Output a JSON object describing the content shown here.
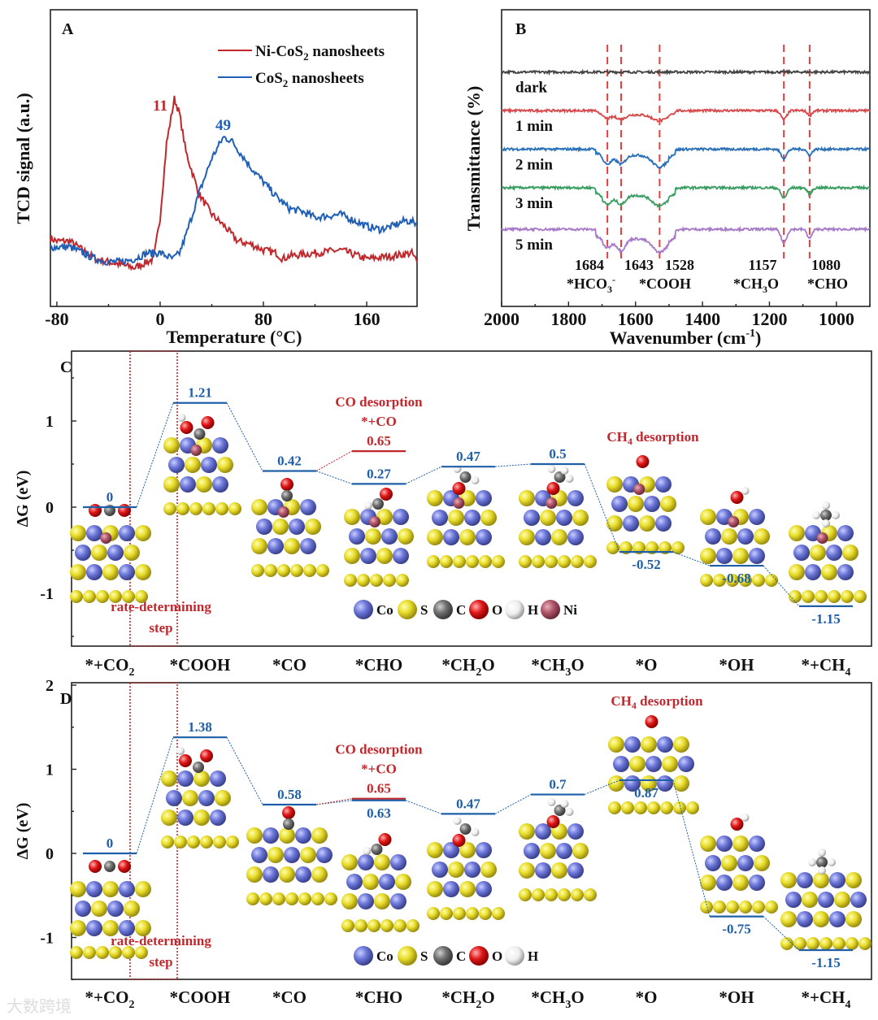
{
  "watermark": "大数跨境",
  "chart_data": [
    {
      "panel": "A",
      "type": "line",
      "xlabel": "Temperature (°C)",
      "ylabel": "TCD signal (a.u.)",
      "xlim": [
        -85,
        199
      ],
      "ylim": [
        0,
        1
      ],
      "xticks": [
        -80,
        0,
        80,
        160
      ],
      "legend_position": "top-right",
      "series": [
        {
          "name": "Ni-CoS2 nanosheets",
          "name_main": "Ni-CoS",
          "name_sub": "2",
          "name_tail": " nanosheets",
          "color": "#c0282d",
          "peak_label": "11",
          "x": [
            -85,
            -80,
            -70,
            -60,
            -50,
            -40,
            -30,
            -20,
            -10,
            -5,
            0,
            5,
            11,
            15,
            20,
            25,
            30,
            40,
            50,
            60,
            70,
            80,
            90,
            95,
            100,
            120,
            140,
            160,
            180,
            195,
            199
          ],
          "y": [
            0.23,
            0.22,
            0.22,
            0.19,
            0.16,
            0.15,
            0.14,
            0.13,
            0.15,
            0.16,
            0.3,
            0.55,
            0.7,
            0.65,
            0.52,
            0.45,
            0.38,
            0.31,
            0.27,
            0.22,
            0.21,
            0.19,
            0.18,
            0.16,
            0.17,
            0.18,
            0.19,
            0.16,
            0.17,
            0.18,
            0.15
          ]
        },
        {
          "name": "CoS2 nanosheets",
          "name_main": "CoS",
          "name_sub": "2",
          "name_tail": " nanosheets",
          "color": "#1f5fb8",
          "peak_label": "49",
          "x": [
            -85,
            -70,
            -60,
            -50,
            -40,
            -30,
            -20,
            -10,
            0,
            10,
            15,
            20,
            30,
            40,
            49,
            55,
            60,
            70,
            80,
            90,
            100,
            110,
            120,
            140,
            160,
            170,
            180,
            190,
            199
          ],
          "y": [
            0.2,
            0.2,
            0.18,
            0.16,
            0.15,
            0.15,
            0.16,
            0.18,
            0.18,
            0.16,
            0.18,
            0.24,
            0.38,
            0.5,
            0.57,
            0.56,
            0.53,
            0.47,
            0.42,
            0.37,
            0.33,
            0.32,
            0.3,
            0.31,
            0.27,
            0.26,
            0.27,
            0.29,
            0.28
          ]
        }
      ]
    },
    {
      "panel": "B",
      "type": "line",
      "xlabel": "Wavenumber (cm-1)",
      "xlabel_main": "Wavenumber (cm",
      "xlabel_sup": "-1",
      "xlabel_tail": ")",
      "ylabel": "Transmittance (%)",
      "xlim": [
        2000,
        900
      ],
      "xticks": [
        2000,
        1800,
        1600,
        1400,
        1200,
        1000
      ],
      "peak_lines": [
        1684,
        1643,
        1528,
        1157,
        1080
      ],
      "annotations": [
        {
          "value": "1684",
          "species": "*HCO",
          "sub": "3",
          "sup": "-"
        },
        {
          "value": "1643",
          "species": "*COOH",
          "sub": "",
          "sup": ""
        },
        {
          "value": "1528",
          "species": "",
          "sub": "",
          "sup": ""
        },
        {
          "value": "1157",
          "species": "*CH",
          "sub": "3",
          "sup": "",
          "tail": "O"
        },
        {
          "value": "1080",
          "species": "*CHO",
          "sub": "",
          "sup": ""
        }
      ],
      "series": [
        {
          "name": "dark",
          "color": "#444444",
          "offset": 0.79,
          "dips": [
            [
              1684,
              0
            ],
            [
              1643,
              0
            ],
            [
              1528,
              0
            ],
            [
              1157,
              0
            ],
            [
              1080,
              0
            ]
          ]
        },
        {
          "name": "1 min",
          "color": "#d9494b",
          "offset": 0.66,
          "dips": [
            [
              1684,
              0.012
            ],
            [
              1643,
              0.015
            ],
            [
              1528,
              0.02
            ],
            [
              1157,
              0.03
            ],
            [
              1080,
              0.015
            ]
          ]
        },
        {
          "name": "2 min",
          "color": "#2a70b8",
          "offset": 0.53,
          "dips": [
            [
              1684,
              0.03
            ],
            [
              1643,
              0.03
            ],
            [
              1528,
              0.04
            ],
            [
              1157,
              0.03
            ],
            [
              1080,
              0.02
            ]
          ]
        },
        {
          "name": "3 min",
          "color": "#3a9e62",
          "offset": 0.4,
          "dips": [
            [
              1684,
              0.03
            ],
            [
              1643,
              0.03
            ],
            [
              1528,
              0.035
            ],
            [
              1157,
              0.035
            ],
            [
              1080,
              0.02
            ]
          ]
        },
        {
          "name": "5 min",
          "color": "#a77ac9",
          "offset": 0.26,
          "dips": [
            [
              1684,
              0.03
            ],
            [
              1643,
              0.04
            ],
            [
              1528,
              0.045
            ],
            [
              1157,
              0.045
            ],
            [
              1080,
              0.03
            ]
          ]
        }
      ]
    },
    {
      "panel": "C",
      "type": "line",
      "ylabel": "ΔG (eV)",
      "ylim": [
        -1.61,
        1.81
      ],
      "yticks": [
        1,
        0,
        -1
      ],
      "categories": [
        [
          "*+CO",
          "2"
        ],
        [
          "*COOH",
          ""
        ],
        [
          "*CO",
          ""
        ],
        [
          "*CHO",
          ""
        ],
        [
          "*CH",
          "2",
          "O"
        ],
        [
          "*CH",
          "3",
          "O"
        ],
        [
          "*O",
          ""
        ],
        [
          "*OH",
          ""
        ],
        [
          "*+CH",
          "4"
        ]
      ],
      "values": [
        0,
        1.21,
        0.42,
        0.27,
        0.47,
        0.5,
        -0.52,
        -0.68,
        -1.15
      ],
      "value_labels": [
        "0",
        "1.21",
        "0.42",
        "0.27",
        "0.47",
        "0.5",
        "-0.52",
        "-0.68",
        "-1.15"
      ],
      "co_desorption": {
        "value": 0.65,
        "label": "0.65",
        "title": "CO desorption",
        "state": "*+CO"
      },
      "ch4_desorption": {
        "main": "CH",
        "sub": "4",
        "tail": " desorption"
      },
      "rate_determining": [
        "rate-determining",
        "step"
      ],
      "atom_legend": [
        {
          "label": "Co",
          "color": "#6b76d8"
        },
        {
          "label": "S",
          "color": "#e8dc2a"
        },
        {
          "label": "C",
          "color": "#707070"
        },
        {
          "label": "O",
          "color": "#e01818"
        },
        {
          "label": "H",
          "color": "#f2f2f2"
        },
        {
          "label": "Ni",
          "color": "#b0566a"
        }
      ]
    },
    {
      "panel": "D",
      "type": "line",
      "ylabel": "ΔG (eV)",
      "ylim": [
        -1.5,
        2.03
      ],
      "yticks": [
        2,
        1,
        0,
        -1
      ],
      "categories": [
        [
          "*+CO",
          "2"
        ],
        [
          "*COOH",
          ""
        ],
        [
          "*CO",
          ""
        ],
        [
          "*CHO",
          ""
        ],
        [
          "*CH",
          "2",
          "O"
        ],
        [
          "*CH",
          "3",
          "O"
        ],
        [
          "*O",
          ""
        ],
        [
          "*OH",
          ""
        ],
        [
          "*+CH",
          "4"
        ]
      ],
      "values": [
        0,
        1.38,
        0.58,
        0.63,
        0.47,
        0.7,
        0.87,
        -0.75,
        -1.15
      ],
      "value_labels": [
        "0",
        "1.38",
        "0.58",
        "0.63",
        "0.47",
        "0.7",
        "0.87",
        "-0.75",
        "-1.15"
      ],
      "co_desorption": {
        "value": 0.65,
        "label": "0.65",
        "title": "CO desorption",
        "state": "*+CO"
      },
      "ch4_desorption": {
        "main": "CH",
        "sub": "4",
        "tail": " desorption"
      },
      "rate_determining": [
        "rate-determining",
        "step"
      ],
      "atom_legend": [
        {
          "label": "Co",
          "color": "#6b76d8"
        },
        {
          "label": "S",
          "color": "#e8dc2a"
        },
        {
          "label": "C",
          "color": "#707070"
        },
        {
          "label": "O",
          "color": "#e01818"
        },
        {
          "label": "H",
          "color": "#f2f2f2"
        }
      ]
    }
  ]
}
